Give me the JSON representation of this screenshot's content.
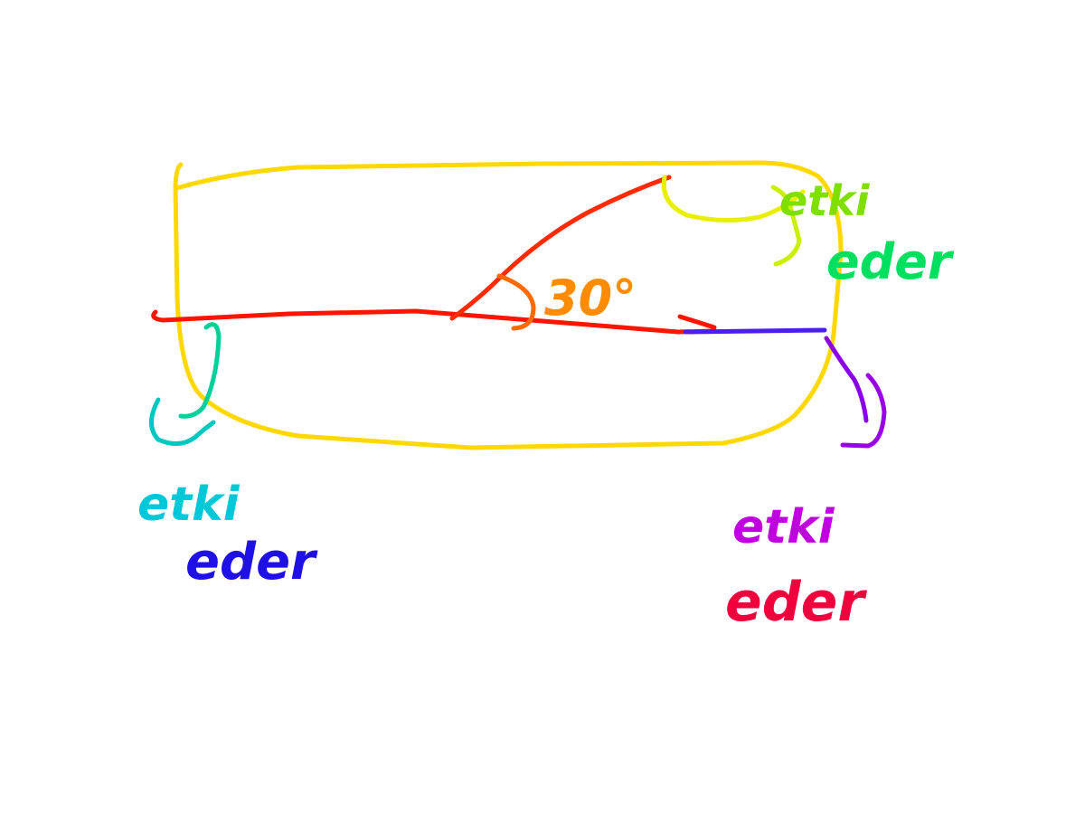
{
  "labels": {
    "angle": "30°",
    "top_right_line1": "etki",
    "top_right_line2": "eder",
    "bottom_left_line1": "etki",
    "bottom_left_line2": "eder",
    "bottom_right_line1": "etki",
    "bottom_right_line2": "eder"
  },
  "colors": {
    "rect": "#FFD800",
    "line": "#FF1400",
    "line_blue": "#4A1EF0",
    "angle_text": "#FF8C00",
    "top_right_1": "#7FE000",
    "top_right_2": "#00E060",
    "bottom_left_1": "#00C8D8",
    "bottom_left_2": "#2010E8",
    "bottom_right_1": "#C000E0",
    "bottom_right_2": "#F0003C"
  }
}
